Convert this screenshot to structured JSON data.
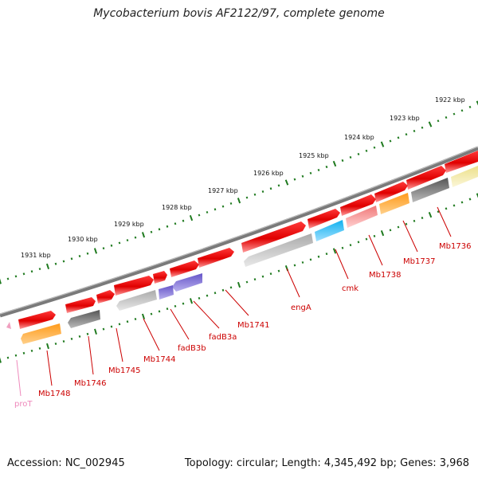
{
  "title": "Mycobacterium bovis AF2122/97, complete genome",
  "footer": {
    "accession": "Accession: NC_002945",
    "summary": "Topology: circular; Length: 4,345,492 bp; Genes: 3,968"
  },
  "ticks": [
    "1922 kbp",
    "1923 kbp",
    "1924 kbp",
    "1925 kbp",
    "1926 kbp",
    "1927 kbp",
    "1928 kbp",
    "1929 kbp",
    "1930 kbp",
    "1931 kbp"
  ],
  "genes": [
    "Mb1736",
    "Mb1737",
    "Mb1738",
    "cmk",
    "engA",
    "Mb1741",
    "fadB3a",
    "fadB3b",
    "Mb1744",
    "Mb1745",
    "Mb1746",
    "Mb1748",
    "proT"
  ],
  "colors": {
    "forward": "#ee1111",
    "label_red": "#cc0000",
    "label_pink": "#ee88bb",
    "tick_green": "#1f7a1f",
    "backbone": "#808080",
    "orange": "#ff8a00",
    "dark_gray": "#606060",
    "light_gray": "#b8b8b8",
    "cyan": "#22b8e8",
    "salmon": "#f28a8a",
    "khaki": "#efe6a0",
    "purple": "#7766cc"
  }
}
